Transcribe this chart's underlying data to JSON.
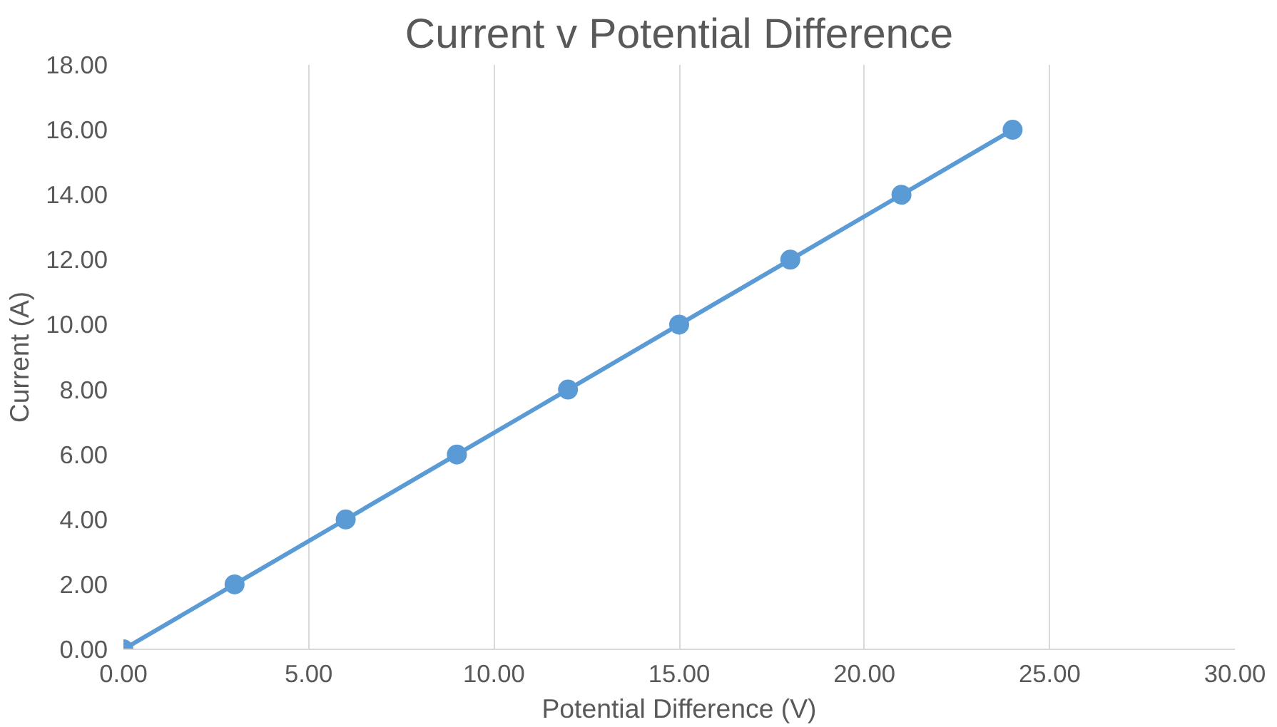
{
  "chart_data": {
    "type": "line",
    "title": "Current v Potential Difference",
    "xlabel": "Potential Difference (V)",
    "ylabel": "Current (A)",
    "x": [
      0,
      3,
      6,
      9,
      12,
      15,
      18,
      21,
      24
    ],
    "series": [
      {
        "color": "#5b9bd5",
        "values": [
          0,
          2,
          4,
          6,
          8,
          10,
          12,
          14,
          16
        ]
      }
    ],
    "xlim": [
      0,
      30
    ],
    "ylim": [
      0,
      18
    ],
    "xticks": [
      {
        "value": 0,
        "label": "0.00"
      },
      {
        "value": 5,
        "label": "5.00"
      },
      {
        "value": 10,
        "label": "10.00"
      },
      {
        "value": 15,
        "label": "15.00"
      },
      {
        "value": 20,
        "label": "20.00"
      },
      {
        "value": 25,
        "label": "25.00"
      },
      {
        "value": 30,
        "label": "30.00"
      }
    ],
    "yticks": [
      {
        "value": 0,
        "label": "0.00"
      },
      {
        "value": 2,
        "label": "2.00"
      },
      {
        "value": 4,
        "label": "4.00"
      },
      {
        "value": 6,
        "label": "6.00"
      },
      {
        "value": 8,
        "label": "8.00"
      },
      {
        "value": 10,
        "label": "10.00"
      },
      {
        "value": 12,
        "label": "12.00"
      },
      {
        "value": 14,
        "label": "14.00"
      },
      {
        "value": 16,
        "label": "16.00"
      },
      {
        "value": 18,
        "label": "18.00"
      }
    ],
    "grid": "x",
    "marker": "circle",
    "line_style": "solid"
  }
}
